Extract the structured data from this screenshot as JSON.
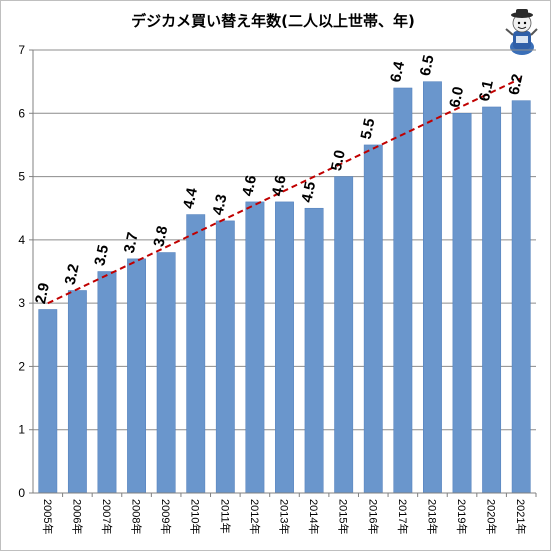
{
  "chart_data": {
    "type": "bar",
    "title": "デジカメ買い替え年数(二人以上世帯、年)",
    "categories": [
      "2005年",
      "2006年",
      "2007年",
      "2008年",
      "2009年",
      "2010年",
      "2011年",
      "2012年",
      "2013年",
      "2014年",
      "2015年",
      "2016年",
      "2017年",
      "2018年",
      "2019年",
      "2020年",
      "2021年"
    ],
    "values": [
      2.9,
      3.2,
      3.5,
      3.7,
      3.8,
      4.4,
      4.3,
      4.6,
      4.6,
      4.5,
      5.0,
      5.5,
      6.4,
      6.5,
      6.0,
      6.1,
      6.2
    ],
    "data_labels": [
      "2.9",
      "3.2",
      "3.5",
      "3.7",
      "3.8",
      "4.4",
      "4.3",
      "4.6",
      "4.6",
      "4.5",
      "5.0",
      "5.5",
      "6.4",
      "6.5",
      "6.0",
      "6.1",
      "6.2"
    ],
    "ylim": [
      0,
      7
    ],
    "yticks": [
      "0",
      "1",
      "2",
      "3",
      "4",
      "5",
      "6",
      "7"
    ],
    "grid": true,
    "trendline": {
      "style": "dashed",
      "type": "linear"
    },
    "colors": {
      "bar": "#6a96cc",
      "bar_edge": "#4f7dba",
      "trend": "#c00000",
      "grid": "#8c8c8c"
    },
    "logo_icon": "cartoon-mascot-icon"
  }
}
